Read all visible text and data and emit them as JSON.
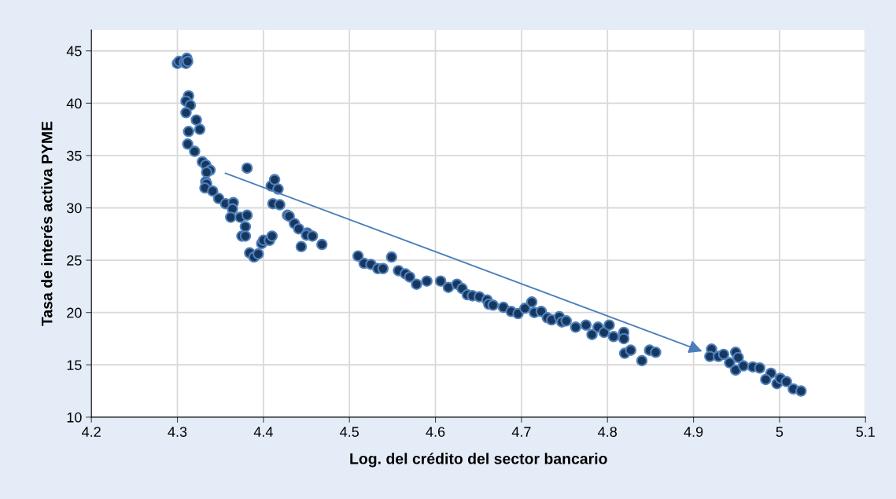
{
  "chart_data": {
    "type": "scatter",
    "xlabel": "Log. del crédito del sector bancario",
    "ylabel": "Tasa de interés activa PYME",
    "xlim": [
      4.2,
      5.1
    ],
    "xticks": [
      4.2,
      4.3,
      4.4,
      4.5,
      4.6,
      4.7,
      4.8,
      4.9,
      5,
      5.1
    ],
    "ylim": [
      10,
      47
    ],
    "yticks": [
      10,
      15,
      20,
      25,
      30,
      35,
      40,
      45
    ],
    "grid": true,
    "legend": false,
    "series": [
      {
        "marker": "circle",
        "color": "#17375e",
        "x": [
          4.3,
          4.302,
          4.308,
          4.31,
          4.311,
          4.312,
          4.313,
          4.31,
          4.315,
          4.31,
          4.322,
          4.313,
          4.326,
          4.312,
          4.32,
          4.329,
          4.333,
          4.338,
          4.334,
          4.333,
          4.334,
          4.332,
          4.341,
          4.348,
          4.356,
          4.365,
          4.364,
          4.362,
          4.373,
          4.381,
          4.379,
          4.375,
          4.379,
          4.381,
          4.384,
          4.389,
          4.394,
          4.398,
          4.4,
          4.407,
          4.41,
          4.409,
          4.413,
          4.417,
          4.411,
          4.419,
          4.428,
          4.43,
          4.436,
          4.441,
          4.444,
          4.451,
          4.45,
          4.457,
          4.468,
          4.51,
          4.517,
          4.525,
          4.533,
          4.539,
          4.549,
          4.557,
          4.565,
          4.57,
          4.578,
          4.59,
          4.606,
          4.615,
          4.625,
          4.631,
          4.637,
          4.643,
          4.651,
          4.66,
          4.662,
          4.667,
          4.679,
          4.688,
          4.696,
          4.704,
          4.712,
          4.715,
          4.723,
          4.73,
          4.735,
          4.744,
          4.747,
          4.752,
          4.763,
          4.775,
          4.782,
          4.789,
          4.796,
          4.802,
          4.807,
          4.819,
          4.819,
          4.82,
          4.827,
          4.84,
          4.849,
          4.856,
          4.921,
          4.919,
          4.929,
          4.935,
          4.942,
          4.949,
          4.952,
          4.949,
          4.958,
          4.969,
          4.977,
          4.99,
          4.984,
          4.997,
          5.001,
          5.008,
          5.016,
          5.025
        ],
        "values": [
          43.8,
          44.0,
          43.9,
          43.8,
          44.3,
          44.0,
          40.7,
          40.2,
          39.8,
          39.1,
          38.4,
          37.3,
          37.5,
          36.1,
          35.4,
          34.4,
          34.1,
          33.6,
          33.4,
          32.5,
          32.3,
          31.9,
          31.6,
          30.9,
          30.4,
          30.5,
          29.9,
          29.1,
          29.1,
          29.3,
          28.2,
          27.3,
          27.3,
          33.8,
          25.7,
          25.3,
          25.6,
          26.6,
          26.9,
          26.9,
          27.3,
          32.1,
          32.7,
          31.8,
          30.4,
          30.3,
          29.3,
          29.2,
          28.5,
          28.0,
          26.3,
          27.6,
          27.4,
          27.3,
          26.5,
          25.4,
          24.7,
          24.6,
          24.2,
          24.2,
          25.3,
          24.0,
          23.7,
          23.4,
          22.7,
          23.0,
          23.0,
          22.4,
          22.7,
          22.3,
          21.7,
          21.6,
          21.5,
          21.2,
          20.8,
          20.7,
          20.5,
          20.1,
          19.9,
          20.4,
          21.0,
          20.0,
          20.1,
          19.5,
          19.3,
          19.6,
          19.1,
          19.2,
          18.6,
          18.8,
          17.9,
          18.6,
          18.1,
          18.8,
          17.7,
          18.1,
          17.5,
          16.1,
          16.4,
          15.4,
          16.4,
          16.2,
          16.5,
          15.8,
          15.8,
          16.0,
          15.2,
          16.2,
          15.7,
          14.5,
          14.9,
          14.8,
          14.7,
          14.2,
          13.6,
          13.2,
          13.7,
          13.4,
          12.7,
          12.5
        ]
      }
    ]
  }
}
